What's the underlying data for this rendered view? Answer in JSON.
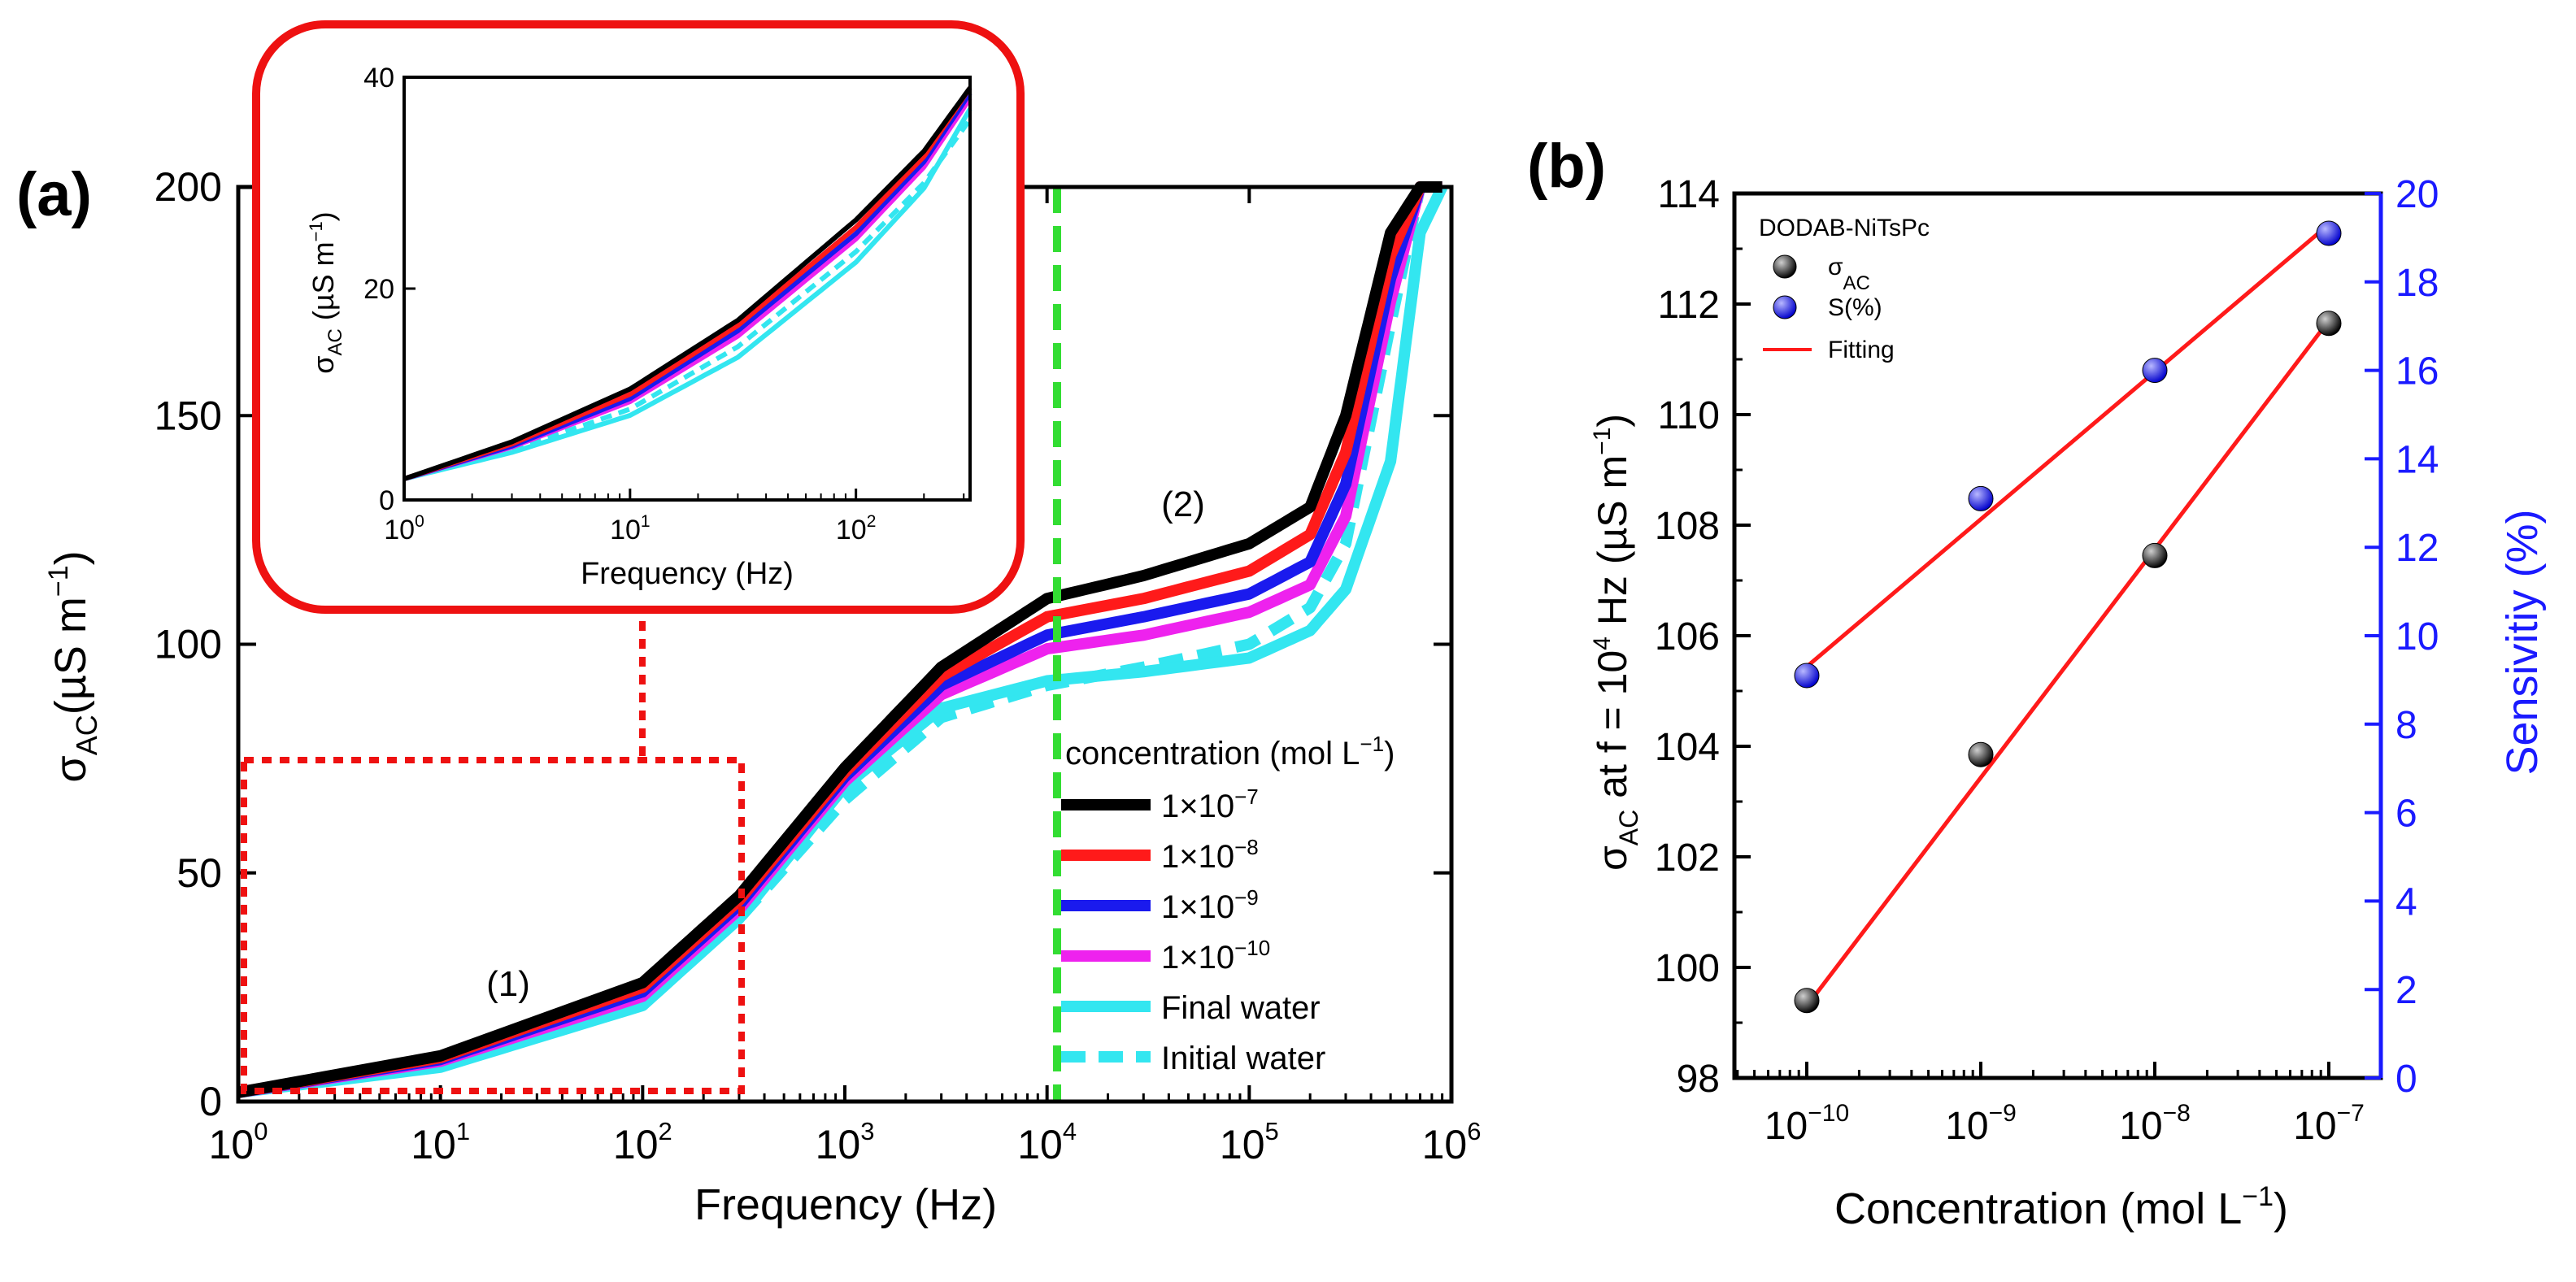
{
  "panel_a": {
    "label": "(a)",
    "ylabel_main": "σ",
    "ylabel_sub": "AC",
    "ylabel_unit": "(µS m",
    "ylabel_exp": "−1",
    "ylabel_close": ")",
    "xlabel": "Frequency (Hz)",
    "xticks": [
      {
        "base": "10",
        "exp": "0"
      },
      {
        "base": "10",
        "exp": "1"
      },
      {
        "base": "10",
        "exp": "2"
      },
      {
        "base": "10",
        "exp": "3"
      },
      {
        "base": "10",
        "exp": "4"
      },
      {
        "base": "10",
        "exp": "5"
      },
      {
        "base": "10",
        "exp": "6"
      }
    ],
    "yticks": [
      "0",
      "50",
      "100",
      "150",
      "200"
    ],
    "region1": "(1)",
    "region2": "(2)",
    "legend_title": "concentration (mol L",
    "legend_title_exp": "−1",
    "legend_title_close": ")",
    "inset": {
      "yticks": [
        "0",
        "20",
        "40"
      ],
      "xticks": [
        {
          "base": "10",
          "exp": "0"
        },
        {
          "base": "10",
          "exp": "1"
        },
        {
          "base": "10",
          "exp": "2"
        }
      ],
      "xlabel": "Frequency (Hz)",
      "ylabel_main": "σ",
      "ylabel_sub": "AC",
      "ylabel_unit": " (µS m",
      "ylabel_exp": "−1",
      "ylabel_close": ")"
    }
  },
  "panel_b": {
    "label": "(b)",
    "xlabel": "Concentration (mol L",
    "xlabel_exp": "−1",
    "xlabel_close": ")",
    "ylabel_left_main": "σ",
    "ylabel_left_sub": "AC",
    "ylabel_left_text": " at f = 10",
    "ylabel_left_exp": "4",
    "ylabel_left_rest": " Hz (µS m",
    "ylabel_left_exp2": "−1",
    "ylabel_left_close": ")",
    "ylabel_right": "Sensivitiy (%)",
    "legend_title": "DODAB-NiTsPc",
    "legend_items": [
      {
        "label_main": "σ",
        "label_sub": "AC",
        "color": "#111111"
      },
      {
        "label_main": "S(%)",
        "label_sub": "",
        "color": "#1a1aff"
      },
      {
        "label_main": "Fitting",
        "label_sub": "",
        "color": "#ff1a1a"
      }
    ],
    "xticks": [
      {
        "base": "10",
        "exp": "−10"
      },
      {
        "base": "10",
        "exp": "−9"
      },
      {
        "base": "10",
        "exp": "−8"
      },
      {
        "base": "10",
        "exp": "−7"
      }
    ],
    "yticks_left": [
      "98",
      "100",
      "102",
      "104",
      "106",
      "108",
      "110",
      "112",
      "114"
    ],
    "yticks_right": [
      "0",
      "2",
      "4",
      "6",
      "8",
      "10",
      "12",
      "14",
      "16",
      "18",
      "20"
    ]
  },
  "chart_data": [
    {
      "type": "line",
      "title": "(a)",
      "xlabel": "Frequency (Hz)",
      "ylabel": "σAC (µS m−1)",
      "xscale": "log",
      "xlim": [
        1,
        1000000
      ],
      "ylim": [
        0,
        200
      ],
      "vertical_marker_x": 10000,
      "x": [
        1,
        10,
        100,
        300,
        1000,
        3000,
        10000,
        30000,
        100000,
        200000,
        300000,
        500000,
        700000,
        900000
      ],
      "series": [
        {
          "name": "1×10−7",
          "color": "#000000",
          "style": "solid",
          "values": [
            2,
            10,
            26,
            45,
            73,
            95,
            110,
            115,
            122,
            130,
            150,
            190,
            200,
            200
          ]
        },
        {
          "name": "1×10−8",
          "color": "#ff1a1a",
          "style": "solid",
          "values": [
            2,
            9.6,
            25,
            44,
            72,
            93,
            106,
            110,
            116,
            124,
            142,
            185,
            200,
            200
          ]
        },
        {
          "name": "1×10−9",
          "color": "#1a1aee",
          "style": "solid",
          "values": [
            2,
            9.2,
            24,
            43,
            71,
            91,
            102,
            106,
            111,
            118,
            135,
            180,
            200,
            200
          ]
        },
        {
          "name": "1×10−10",
          "color": "#ee22ee",
          "style": "solid",
          "values": [
            2,
            8.8,
            23,
            42,
            70,
            89,
            99,
            102,
            107,
            113,
            128,
            175,
            200,
            200
          ]
        },
        {
          "name": "Final water",
          "color": "#33e6f0",
          "style": "solid",
          "values": [
            2,
            7.5,
            21,
            40,
            69,
            86,
            92,
            94,
            97,
            103,
            112,
            140,
            190,
            200
          ]
        },
        {
          "name": "Initial water",
          "color": "#33e6f0",
          "style": "dashed",
          "values": [
            2,
            8,
            22,
            40,
            66,
            84,
            91,
            95,
            100,
            108,
            122,
            170,
            200,
            200
          ]
        }
      ]
    },
    {
      "type": "line",
      "title": "inset",
      "xlabel": "Frequency (Hz)",
      "ylabel": "σAC (µS m−1)",
      "xscale": "log",
      "xlim": [
        1,
        320
      ],
      "ylim": [
        0,
        40
      ],
      "x": [
        1,
        3,
        10,
        30,
        100,
        200,
        320
      ],
      "series": [
        {
          "name": "1×10−7",
          "color": "#000000",
          "style": "solid",
          "values": [
            2,
            5.5,
            10.5,
            17,
            26.5,
            33,
            39
          ]
        },
        {
          "name": "1×10−8",
          "color": "#ff1a1a",
          "style": "solid",
          "values": [
            2,
            5.3,
            10,
            16.5,
            25.8,
            32.5,
            39
          ]
        },
        {
          "name": "1×10−9",
          "color": "#1a1aee",
          "style": "solid",
          "values": [
            2,
            5.1,
            9.6,
            16,
            25.2,
            32,
            38.5
          ]
        },
        {
          "name": "1×10−10",
          "color": "#ee22ee",
          "style": "solid",
          "values": [
            2,
            5,
            9.3,
            15.5,
            24.7,
            31.5,
            38
          ]
        },
        {
          "name": "Final water",
          "color": "#33e6f0",
          "style": "solid",
          "values": [
            2,
            4.5,
            8,
            13.5,
            22.5,
            29.5,
            37
          ]
        },
        {
          "name": "Initial water",
          "color": "#33e6f0",
          "style": "dashed",
          "values": [
            2,
            4.7,
            8.6,
            14.5,
            23.5,
            30,
            36
          ]
        }
      ]
    },
    {
      "type": "scatter",
      "title": "(b)",
      "xlabel": "Concentration (mol L−1)",
      "xscale": "log",
      "categories": [
        "1e-10",
        "1e-9",
        "1e-8",
        "1e-7"
      ],
      "x": [
        1e-10,
        1e-09,
        1e-08,
        1e-07
      ],
      "ylabel_left": "σAC at f = 10^4 Hz (µS m−1)",
      "ylim_left": [
        98,
        114
      ],
      "ylabel_right": "Sensivitiy (%)",
      "ylim_right": [
        0,
        20
      ],
      "series": [
        {
          "name": "σAC",
          "axis": "left",
          "color": "#111111",
          "values": [
            99.4,
            103.85,
            107.45,
            111.65
          ],
          "fit": [
            99.3,
            103.4,
            107.5,
            111.7
          ]
        },
        {
          "name": "S(%)",
          "axis": "right",
          "color": "#1a1aff",
          "values": [
            9.1,
            13.1,
            16,
            19.1
          ],
          "fit": [
            9.3,
            12.6,
            16,
            19.3
          ]
        }
      ]
    }
  ]
}
